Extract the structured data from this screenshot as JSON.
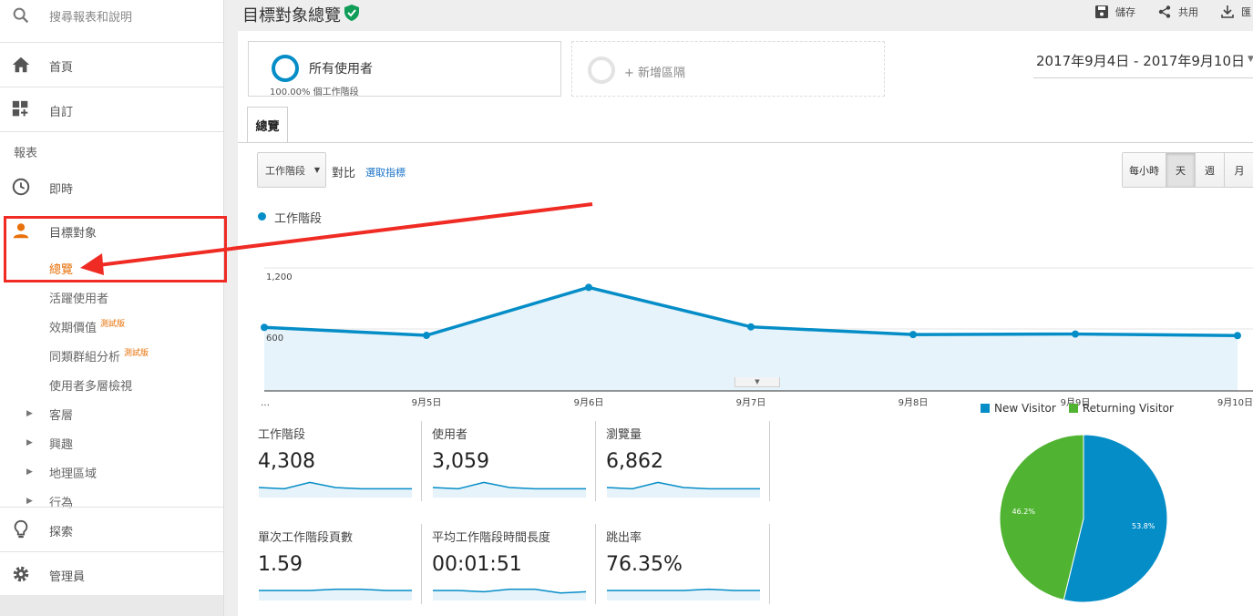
{
  "sidebar": {
    "search_placeholder": "搜尋報表和說明",
    "home": "首頁",
    "custom": "自訂",
    "reports_heading": "報表",
    "realtime": "即時",
    "audience": "目標對象",
    "audience_items": [
      {
        "label": "總覽",
        "active": true
      },
      {
        "label": "活躍使用者"
      },
      {
        "label": "效期價值",
        "badge": "測試版"
      },
      {
        "label": "同類群組分析",
        "badge": "測試版"
      },
      {
        "label": "使用者多層檢視"
      }
    ],
    "collapsible_items": [
      "客層",
      "興趣",
      "地理區域",
      "行為"
    ],
    "discover": "探索",
    "admin": "管理員"
  },
  "header": {
    "title": "目標對象總覽",
    "save": "儲存",
    "share": "共用",
    "export": "匯"
  },
  "segments": {
    "all_users": "所有使用者",
    "all_users_sub": "100.00% 個工作階段",
    "add_segment": "+ 新增區隔"
  },
  "date_range": "2017年9月4日 - 2017年9月10日",
  "tabs": {
    "overview": "總覽"
  },
  "controls": {
    "metric": "工作階段",
    "vs": "對比",
    "pick_metric": "選取指標",
    "granularity": [
      "每小時",
      "天",
      "週",
      "月"
    ],
    "active_granularity": "天"
  },
  "chart_data": {
    "type": "area",
    "legend": "工作階段",
    "x_labels": [
      "…",
      "9月5日",
      "9月6日",
      "9月7日",
      "9月8日",
      "9月9日",
      "9月10日"
    ],
    "y_ticks": [
      "1,200",
      "600"
    ],
    "ylim": [
      0,
      1200
    ],
    "values": [
      620,
      542,
      1010,
      625,
      550,
      555,
      540
    ],
    "color": "#058dc7"
  },
  "kpis": [
    {
      "label": "工作階段",
      "value": "4,308",
      "spark": [
        5,
        4,
        9,
        5,
        4,
        4,
        4
      ]
    },
    {
      "label": "使用者",
      "value": "3,059",
      "spark": [
        5,
        4,
        9,
        5,
        4,
        4,
        4
      ]
    },
    {
      "label": "瀏覽量",
      "value": "6,862",
      "spark": [
        5,
        4,
        9,
        5,
        4,
        4,
        4
      ]
    },
    {
      "label": "單次工作階段頁數",
      "value": "1.59",
      "spark": [
        5,
        5,
        5,
        6,
        6,
        5,
        5
      ]
    },
    {
      "label": "平均工作階段時間長度",
      "value": "00:01:51",
      "spark": [
        5,
        5,
        4,
        6,
        6,
        3,
        4
      ]
    },
    {
      "label": "跳出率",
      "value": "76.35%",
      "spark": [
        5,
        5,
        5,
        5,
        6,
        5,
        5
      ]
    }
  ],
  "pie": {
    "type": "pie",
    "slices": [
      {
        "name": "New Visitor",
        "value": 53.8,
        "label": "53.8%",
        "color": "#058dc7"
      },
      {
        "name": "Returning Visitor",
        "value": 46.2,
        "label": "46.2%",
        "color": "#50b432"
      }
    ]
  },
  "colors": {
    "accent": "#058dc7",
    "active_orange": "#e8710a",
    "annotation_red": "#ef2b24"
  }
}
